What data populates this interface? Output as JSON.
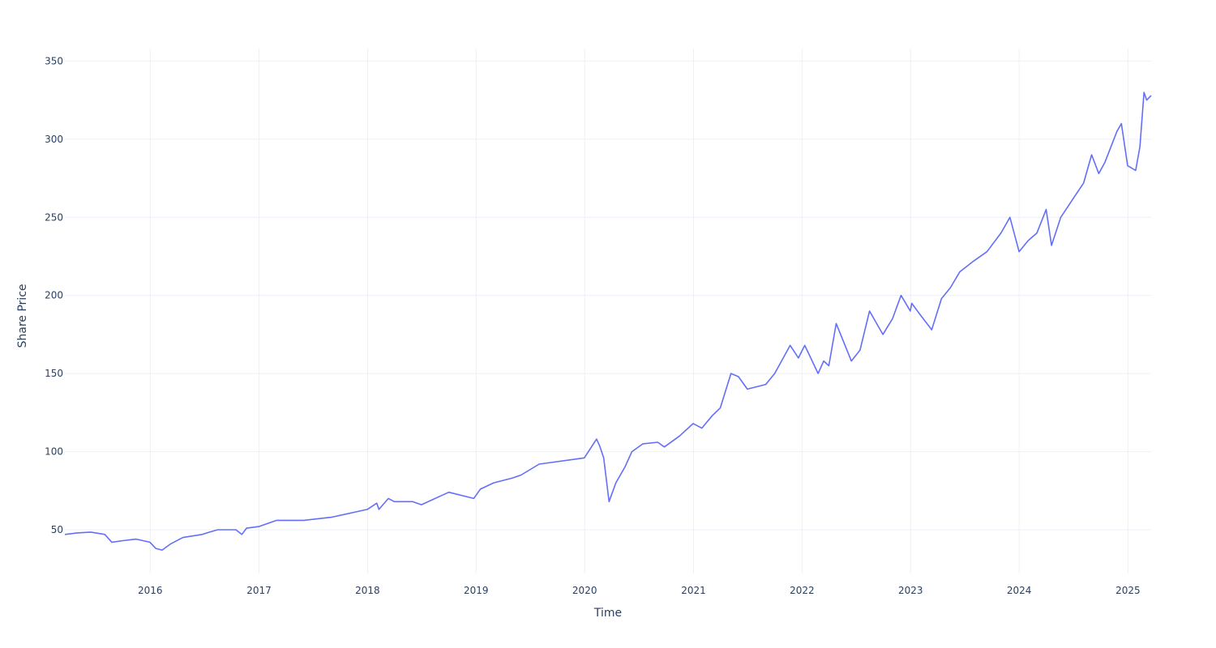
{
  "chart_data": {
    "type": "line",
    "xlabel": "Time",
    "ylabel": "Share Price",
    "xlim": [
      "2015-03-20",
      "2025-03-20"
    ],
    "ylim": [
      22,
      358
    ],
    "x_ticks": [
      "2016",
      "2017",
      "2018",
      "2019",
      "2020",
      "2021",
      "2022",
      "2023",
      "2024",
      "2025"
    ],
    "y_ticks": [
      50,
      100,
      150,
      200,
      250,
      300,
      350
    ],
    "grid": true,
    "legend": "none",
    "colors": {
      "line": "#636efa",
      "grid": "#ebf0f8",
      "text": "#2a3f5f"
    },
    "series": [
      {
        "x": [
          "2015-03-20",
          "2015-05-01",
          "2015-06-15",
          "2015-08-01",
          "2015-08-25",
          "2015-10-01",
          "2015-11-15",
          "2015-12-31",
          "2016-01-20",
          "2016-02-10",
          "2016-03-10",
          "2016-04-20",
          "2016-06-24",
          "2016-07-10",
          "2016-08-15",
          "2016-10-15",
          "2016-11-04",
          "2016-11-20",
          "2016-12-31",
          "2017-03-01",
          "2017-06-01",
          "2017-09-01",
          "2017-12-31",
          "2018-02-01",
          "2018-02-08",
          "2018-03-12",
          "2018-04-01",
          "2018-06-01",
          "2018-07-01",
          "2018-10-01",
          "2018-12-24",
          "2019-01-15",
          "2019-03-01",
          "2019-05-01",
          "2019-06-01",
          "2019-08-01",
          "2019-12-31",
          "2020-02-10",
          "2020-02-20",
          "2020-03-05",
          "2020-03-23",
          "2020-04-15",
          "2020-05-15",
          "2020-06-08",
          "2020-07-15",
          "2020-09-03",
          "2020-09-25",
          "2020-11-15",
          "2020-12-31",
          "2021-01-29",
          "2021-03-05",
          "2021-04-01",
          "2021-05-07",
          "2021-06-01",
          "2021-07-01",
          "2021-09-01",
          "2021-10-01",
          "2021-11-22",
          "2021-12-20",
          "2022-01-10",
          "2022-02-24",
          "2022-03-15",
          "2022-04-01",
          "2022-04-26",
          "2022-06-16",
          "2022-07-15",
          "2022-08-16",
          "2022-09-30",
          "2022-11-01",
          "2022-11-30",
          "2022-12-31",
          "2023-01-05",
          "2023-02-01",
          "2023-03-13",
          "2023-04-15",
          "2023-05-15",
          "2023-06-15",
          "2023-08-01",
          "2023-09-15",
          "2023-11-01",
          "2023-12-01",
          "2024-01-01",
          "2024-01-31",
          "2024-03-01",
          "2024-04-01",
          "2024-04-19",
          "2024-05-20",
          "2024-07-01",
          "2024-08-05",
          "2024-09-01",
          "2024-09-25",
          "2024-10-15",
          "2024-11-25",
          "2024-12-10",
          "2024-12-31",
          "2025-01-27",
          "2025-02-10",
          "2025-02-24",
          "2025-03-05",
          "2025-03-20"
        ],
        "y": [
          47,
          48,
          48.5,
          47,
          42,
          43,
          44,
          42,
          38,
          37,
          41,
          45,
          47,
          48,
          50,
          50,
          47,
          51,
          52,
          56,
          56,
          58,
          63,
          67,
          63,
          70,
          68,
          68,
          66,
          74,
          70,
          76,
          80,
          83,
          85,
          92,
          96,
          108,
          104,
          96,
          68,
          80,
          90,
          100,
          105,
          106,
          103,
          110,
          118,
          115,
          123,
          128,
          150,
          148,
          140,
          143,
          150,
          168,
          160,
          168,
          150,
          158,
          155,
          182,
          158,
          165,
          190,
          175,
          185,
          200,
          190,
          195,
          188,
          178,
          198,
          205,
          215,
          222,
          228,
          240,
          250,
          228,
          235,
          240,
          255,
          232,
          250,
          262,
          272,
          290,
          278,
          285,
          305,
          310,
          283,
          280,
          295,
          330,
          325,
          328
        ]
      }
    ]
  }
}
